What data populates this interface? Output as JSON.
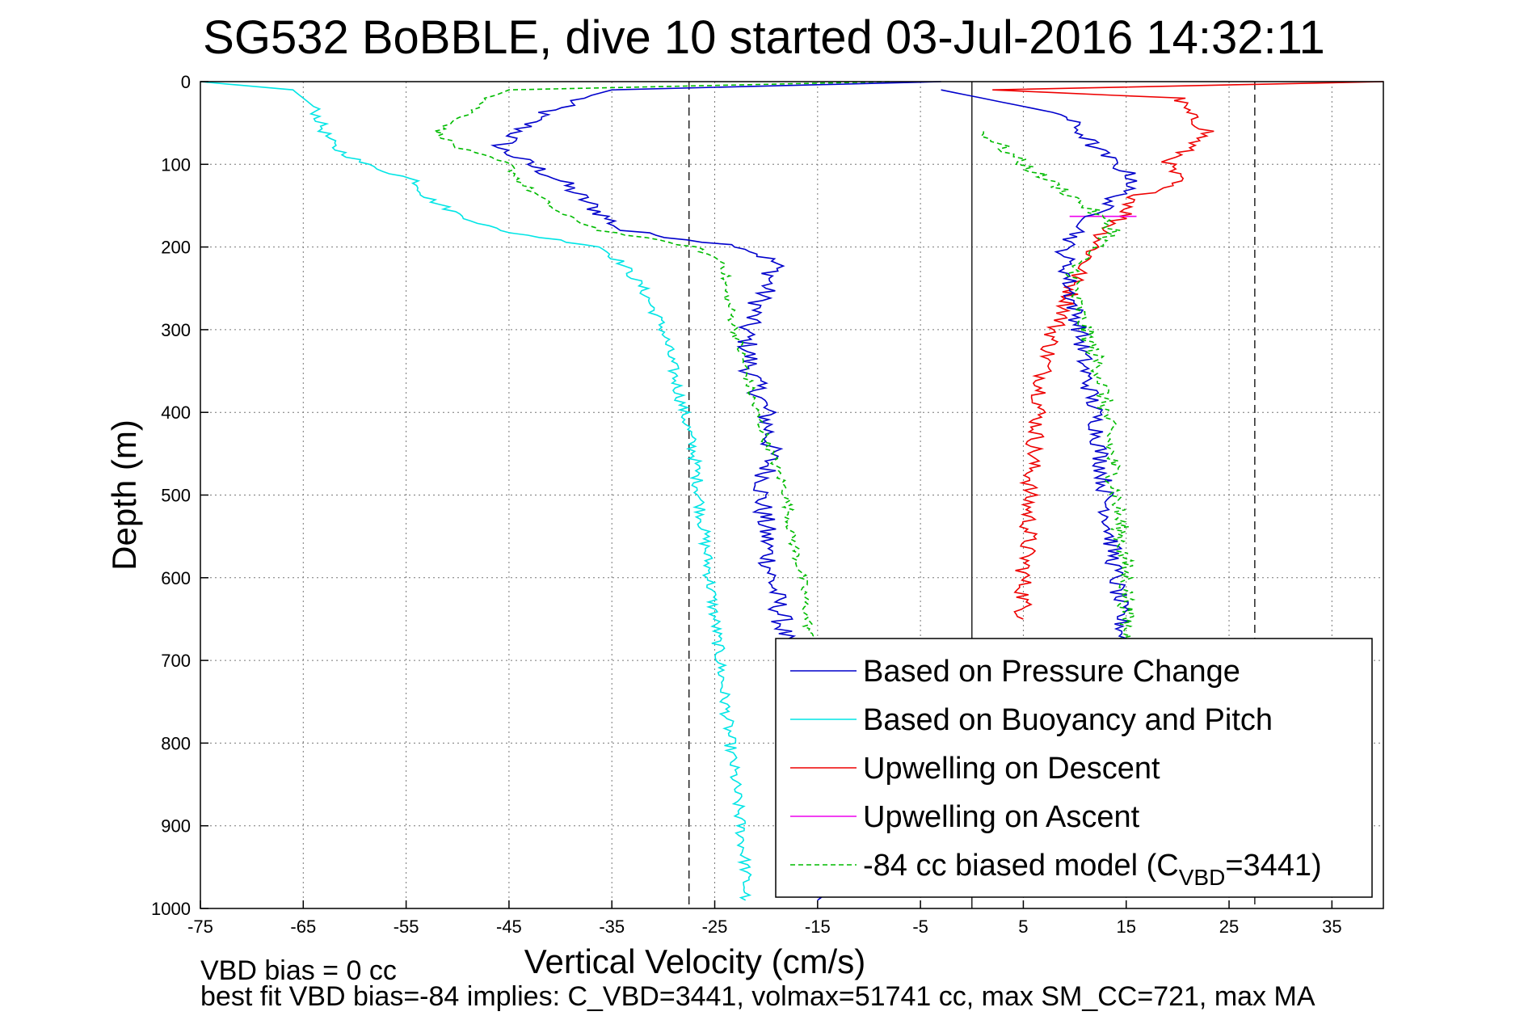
{
  "title": "SG532 BoBBLE, dive 10 started 03-Jul-2016 14:32:11",
  "chart_data": {
    "type": "line",
    "xlabel": "Vertical Velocity (cm/s)",
    "ylabel": "Depth (m)",
    "xlim": [
      -75,
      40
    ],
    "ylim": [
      0,
      1000
    ],
    "y_reversed": true,
    "grid": true,
    "legend_position": "bottom-right",
    "x_ticks": [
      -75,
      -65,
      -55,
      -45,
      -35,
      -25,
      -15,
      -5,
      5,
      15,
      25,
      35
    ],
    "y_ticks": [
      0,
      100,
      200,
      300,
      400,
      500,
      600,
      700,
      800,
      900,
      1000
    ],
    "vertical_reference_lines": [
      {
        "x": -27.5,
        "style": "dashed"
      },
      {
        "x": 0,
        "style": "solid"
      },
      {
        "x": 27.5,
        "style": "dashed"
      }
    ],
    "series": [
      {
        "name": "Based on Pressure Change",
        "color": "#0000cc",
        "style": "solid",
        "depth": [
          0,
          10,
          20,
          40,
          60,
          80,
          100,
          120,
          140,
          160,
          180,
          200,
          220,
          250,
          300,
          350,
          400,
          450,
          500,
          550,
          600,
          650,
          700,
          750,
          800,
          850,
          900,
          950,
          990
        ],
        "x": [
          -3,
          -35,
          -38,
          -42,
          -44,
          -46,
          -43,
          -40,
          -38,
          -36,
          -34,
          -22,
          -19,
          -20,
          -22,
          -21.5,
          -20,
          -19.5,
          -20.5,
          -20,
          -19.5,
          -18.5,
          -18,
          -17.5,
          -17,
          -16.5,
          -16,
          -15.5,
          -15
        ]
      },
      {
        "name": "Based on Buoyancy and Pitch",
        "color": "#00e5e5",
        "style": "solid",
        "depth": [
          0,
          10,
          30,
          60,
          80,
          100,
          120,
          140,
          160,
          180,
          200,
          220,
          250,
          300,
          350,
          400,
          450,
          500,
          550,
          600,
          650,
          700,
          750,
          800,
          850,
          900,
          950,
          990
        ],
        "x": [
          -75,
          -66,
          -64,
          -63,
          -62,
          -59,
          -54,
          -53,
          -50,
          -46,
          -36,
          -34,
          -32,
          -30,
          -29,
          -28,
          -27,
          -26.5,
          -26,
          -25.5,
          -25,
          -24.5,
          -24,
          -23.5,
          -23,
          -22.5,
          -22,
          -22
        ]
      },
      {
        "name": "Upwelling on Descent",
        "color": "#ee0000",
        "style": "solid",
        "depth": [
          0,
          10,
          20,
          40,
          60,
          80,
          100,
          120,
          140,
          160,
          180,
          200,
          220,
          240,
          260,
          280,
          300,
          350,
          400,
          450,
          500,
          550,
          600,
          650
        ],
        "x": [
          40,
          2,
          20,
          21,
          23,
          21,
          19,
          20,
          16,
          15,
          13,
          12,
          11,
          10,
          9.5,
          9,
          8,
          7,
          6.5,
          6,
          5.5,
          5.5,
          5,
          5
        ]
      },
      {
        "name": "Upwelling on Ascent",
        "color": "#ee00ee",
        "style": "solid",
        "depth": [
          163,
          163
        ],
        "x": [
          9.5,
          16
        ]
      },
      {
        "name": "-84 cc biased model (C_VBD=3441)",
        "color": "#00bb00",
        "style": "dashed",
        "depth": [
          0,
          10,
          20,
          40,
          60,
          80,
          100,
          120,
          140,
          160,
          180,
          200,
          220,
          250,
          300,
          350,
          400,
          450,
          500,
          550,
          600,
          650,
          700
        ],
        "x": [
          -8,
          -45,
          -47,
          -49,
          -52,
          -50,
          -45,
          -44,
          -42,
          -40,
          -36,
          -27,
          -24,
          -24,
          -23,
          -22,
          -21,
          -19.5,
          -18,
          -17.5,
          -16.5,
          -16,
          -15.5
        ]
      }
    ],
    "ascent_series": [
      {
        "name": "Based on Pressure Change",
        "color": "#0000cc",
        "depth": [
          10,
          40,
          80,
          120,
          160,
          200,
          250,
          300,
          350,
          400,
          450,
          500,
          550,
          600,
          650,
          700
        ],
        "x": [
          -3,
          9,
          12,
          16,
          12,
          9,
          9.5,
          10.5,
          11,
          12,
          12.5,
          13,
          13.5,
          14,
          14.5,
          15
        ]
      },
      {
        "name": "-84 cc biased model (C_VBD=3441)",
        "color": "#00bb00",
        "depth": [
          60,
          100,
          140,
          180,
          220,
          260,
          300,
          350,
          400,
          450,
          500,
          550,
          600,
          650,
          700
        ],
        "x": [
          1,
          5,
          10,
          14,
          10,
          10,
          11,
          12.5,
          13,
          13.5,
          14,
          14.5,
          15,
          15,
          15
        ]
      }
    ]
  },
  "legend": {
    "entries": [
      {
        "label": "Based on Pressure Change",
        "color": "#0000cc",
        "dashed": false
      },
      {
        "label": "Based on Buoyancy and Pitch",
        "color": "#00e5e5",
        "dashed": false
      },
      {
        "label": "Upwelling on Descent",
        "color": "#ee0000",
        "dashed": false
      },
      {
        "label": "Upwelling on Ascent",
        "color": "#ee00ee",
        "dashed": false
      },
      {
        "label_prefix": "-84 cc biased model (C",
        "label_subscript": "VBD",
        "label_suffix": "=3441)",
        "color": "#00bb00",
        "dashed": true
      }
    ]
  },
  "footer": {
    "line1": "VBD bias = 0 cc",
    "line2": "best fit VBD bias=-84 implies: C_VBD=3441, volmax=51741 cc, max SM_CC=721, max MA"
  }
}
